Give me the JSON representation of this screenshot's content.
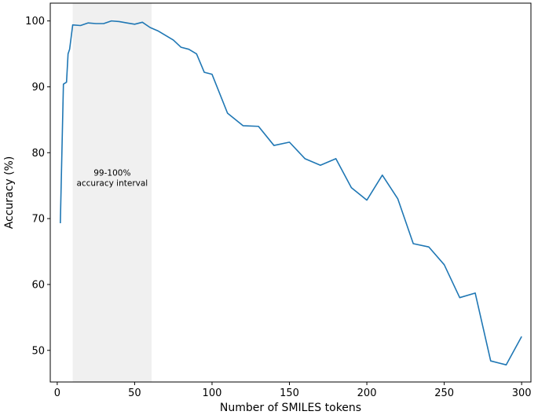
{
  "chart_data": {
    "type": "line",
    "title": "",
    "xlabel": "Number of SMILES tokens",
    "ylabel": "Accuracy (%)",
    "xlim": [
      -4.5,
      306
    ],
    "ylim": [
      45.2,
      102.7
    ],
    "xticks": [
      0,
      50,
      100,
      150,
      200,
      250,
      300
    ],
    "yticks": [
      50,
      60,
      70,
      80,
      90,
      100
    ],
    "grid": false,
    "legend": "none",
    "series": [
      {
        "color": "#1f77b4",
        "points": [
          [
            2,
            69.3
          ],
          [
            4,
            90.4
          ],
          [
            6,
            90.7
          ],
          [
            7,
            95.0
          ],
          [
            8,
            95.7
          ],
          [
            10,
            99.4
          ],
          [
            15,
            99.3
          ],
          [
            20,
            99.7
          ],
          [
            25,
            99.6
          ],
          [
            30,
            99.6
          ],
          [
            35,
            100.0
          ],
          [
            40,
            99.9
          ],
          [
            45,
            99.7
          ],
          [
            50,
            99.5
          ],
          [
            55,
            99.8
          ],
          [
            60,
            99.0
          ],
          [
            65,
            98.5
          ],
          [
            70,
            97.8
          ],
          [
            75,
            97.1
          ],
          [
            80,
            96.0
          ],
          [
            85,
            95.7
          ],
          [
            90,
            95.0
          ],
          [
            95,
            92.2
          ],
          [
            100,
            91.9
          ],
          [
            110,
            86.0
          ],
          [
            120,
            84.1
          ],
          [
            130,
            84.0
          ],
          [
            140,
            81.1
          ],
          [
            150,
            81.6
          ],
          [
            160,
            79.1
          ],
          [
            170,
            78.1
          ],
          [
            180,
            79.1
          ],
          [
            190,
            74.7
          ],
          [
            200,
            72.8
          ],
          [
            210,
            76.6
          ],
          [
            220,
            73.0
          ],
          [
            230,
            66.2
          ],
          [
            240,
            65.7
          ],
          [
            250,
            63.0
          ],
          [
            260,
            58.0
          ],
          [
            270,
            58.7
          ],
          [
            280,
            48.4
          ],
          [
            290,
            47.8
          ],
          [
            300,
            52.1
          ]
        ]
      }
    ],
    "annotations": [
      {
        "type": "shaded-interval",
        "x_range": [
          10,
          61
        ],
        "color": "#f0f0f0",
        "label_lines": [
          "99-100%",
          "accuracy interval"
        ],
        "label_x": 35.5,
        "label_y": 76.5
      }
    ]
  }
}
